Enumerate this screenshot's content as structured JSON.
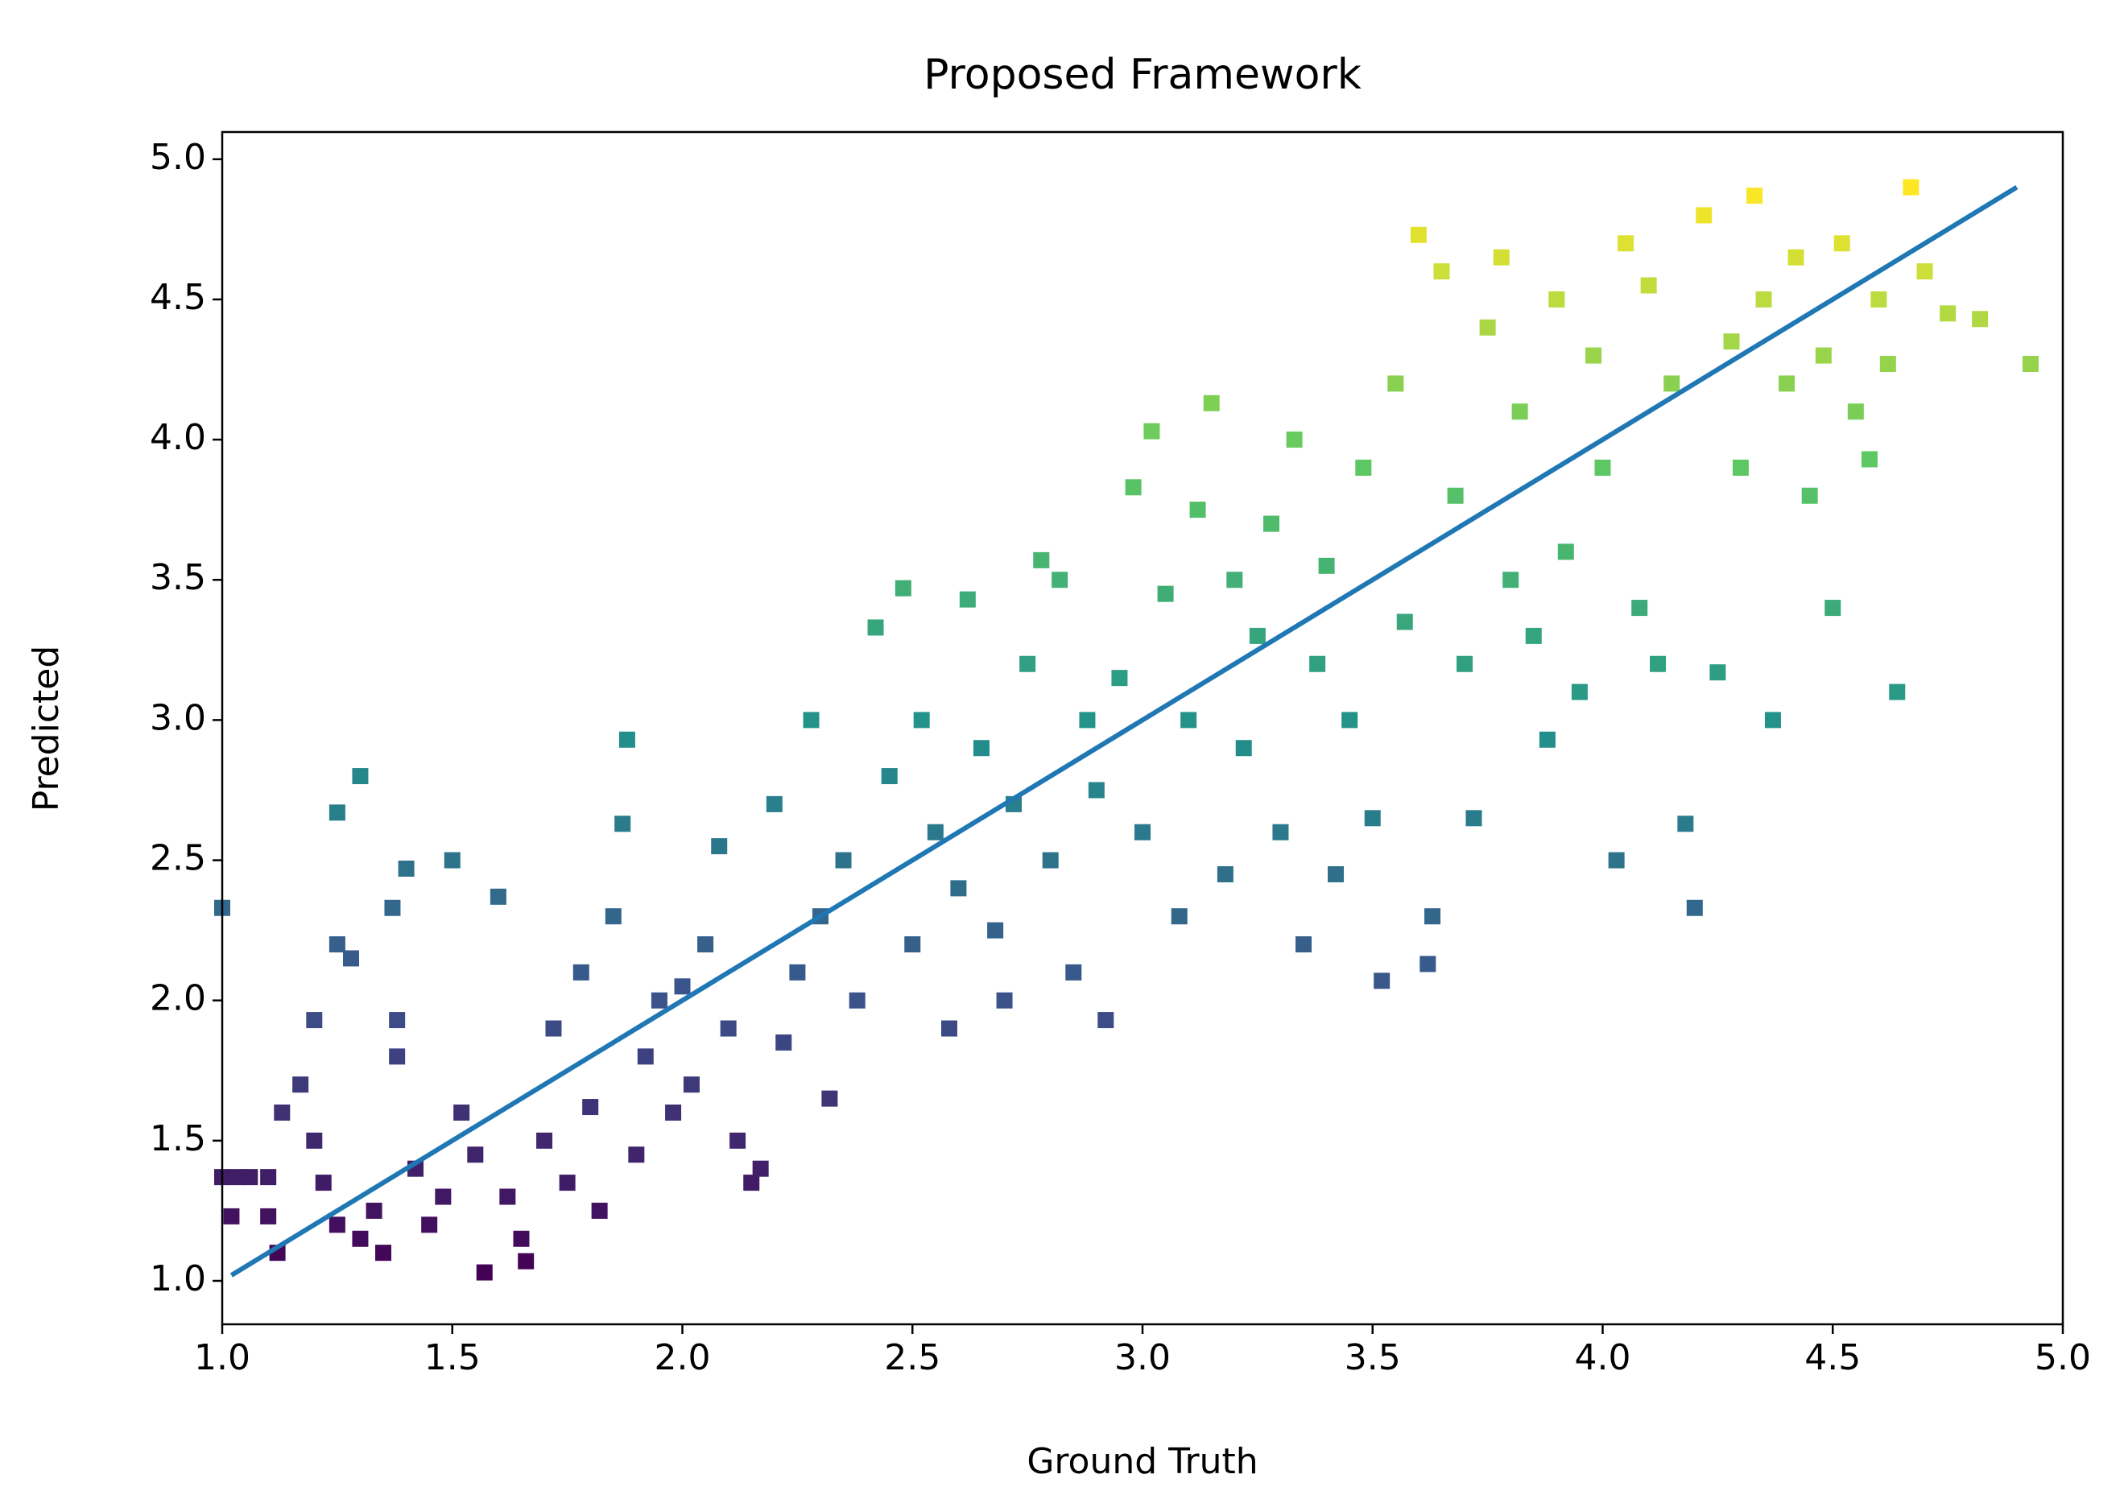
{
  "chart_data": {
    "type": "scatter",
    "title": "Proposed Framework",
    "x_label": "Ground Truth",
    "y_label": "Predicted",
    "xlim": [
      1.0,
      5.0
    ],
    "ylim": [
      0.845,
      5.097
    ],
    "xticks": [
      {
        "value": 1,
        "label": "1.0"
      },
      {
        "value": 1.5,
        "label": "1.5"
      },
      {
        "value": 2,
        "label": "2.0"
      },
      {
        "value": 2.5,
        "label": "2.5"
      },
      {
        "value": 3,
        "label": "3.0"
      },
      {
        "value": 3.5,
        "label": "3.5"
      },
      {
        "value": 4,
        "label": "4.0"
      },
      {
        "value": 4.5,
        "label": "4.5"
      },
      {
        "value": 5,
        "label": "5.0"
      }
    ],
    "yticks": [
      {
        "value": 1,
        "label": "1.0"
      },
      {
        "value": 1.5,
        "label": "1.5"
      },
      {
        "value": 2,
        "label": "2.0"
      },
      {
        "value": 2.5,
        "label": "2.5"
      },
      {
        "value": 3,
        "label": "3.0"
      },
      {
        "value": 3.5,
        "label": "3.5"
      },
      {
        "value": 4,
        "label": "4.0"
      },
      {
        "value": 4.5,
        "label": "4.5"
      },
      {
        "value": 5,
        "label": "5.0"
      }
    ],
    "colormap": [
      "#440154",
      "#3b528b",
      "#21918c",
      "#5ec962",
      "#fde725"
    ],
    "x": [
      1.0,
      1.03,
      1.06,
      1.1,
      1.02,
      1.1,
      1.12,
      1.13,
      1.17,
      1.2,
      1.25,
      1.3,
      1.25,
      1.28,
      1.2,
      1.22,
      1.25,
      1.3,
      1.33,
      1.35,
      1.38,
      1.4,
      1.37,
      1.38,
      1.42,
      1.45,
      1.48,
      1.5,
      1.52,
      1.55,
      1.57,
      1.6,
      1.62,
      1.65,
      1.66,
      1.7,
      1.72,
      1.75,
      1.78,
      1.8,
      1.82,
      1.85,
      1.87,
      1.88,
      1.9,
      1.92,
      1.95,
      1.98,
      2.0,
      2.02,
      2.05,
      2.08,
      2.1,
      2.12,
      2.15,
      2.17,
      2.2,
      2.22,
      2.25,
      2.28,
      2.3,
      2.32,
      2.35,
      2.38,
      2.42,
      2.45,
      2.48,
      2.5,
      2.52,
      2.55,
      2.58,
      2.6,
      2.62,
      2.65,
      2.68,
      2.7,
      2.72,
      2.75,
      2.78,
      2.8,
      2.82,
      2.85,
      2.88,
      2.9,
      2.92,
      2.95,
      2.98,
      3.0,
      3.02,
      3.05,
      3.08,
      3.1,
      3.12,
      3.15,
      3.18,
      3.2,
      3.22,
      3.25,
      3.28,
      3.3,
      3.33,
      3.35,
      3.38,
      3.4,
      3.42,
      3.45,
      3.48,
      3.5,
      3.52,
      3.55,
      3.57,
      3.6,
      3.62,
      3.63,
      3.65,
      3.68,
      3.7,
      3.72,
      3.75,
      3.78,
      3.8,
      3.82,
      3.85,
      3.88,
      3.9,
      3.92,
      3.95,
      3.98,
      4.0,
      4.03,
      4.05,
      4.08,
      4.1,
      4.12,
      4.15,
      4.18,
      4.2,
      4.22,
      4.25,
      4.28,
      4.3,
      4.33,
      4.35,
      4.37,
      4.4,
      4.42,
      4.45,
      4.48,
      4.5,
      4.52,
      4.55,
      4.58,
      4.6,
      4.62,
      4.64,
      4.67,
      4.7,
      4.75,
      4.82,
      4.93,
      1.0
    ],
    "y": [
      1.37,
      1.37,
      1.37,
      1.37,
      1.23,
      1.23,
      1.1,
      1.6,
      1.7,
      1.93,
      2.67,
      2.8,
      2.2,
      2.15,
      1.5,
      1.35,
      1.2,
      1.15,
      1.25,
      1.1,
      1.8,
      2.47,
      2.33,
      1.93,
      1.4,
      1.2,
      1.3,
      2.5,
      1.6,
      1.45,
      1.03,
      2.37,
      1.3,
      1.15,
      1.07,
      1.5,
      1.9,
      1.35,
      2.1,
      1.62,
      1.25,
      2.3,
      2.63,
      2.93,
      1.45,
      1.8,
      2.0,
      1.6,
      2.05,
      1.7,
      2.2,
      2.55,
      1.9,
      1.5,
      1.35,
      1.4,
      2.7,
      1.85,
      2.1,
      3.0,
      2.3,
      1.65,
      2.5,
      2.0,
      3.33,
      2.8,
      3.47,
      2.2,
      3.0,
      2.6,
      1.9,
      2.4,
      3.43,
      2.9,
      2.25,
      2.0,
      2.7,
      3.2,
      3.57,
      2.5,
      3.5,
      2.1,
      3.0,
      2.75,
      1.93,
      3.15,
      3.83,
      2.6,
      4.03,
      3.45,
      2.3,
      3.0,
      3.75,
      4.13,
      2.45,
      3.5,
      2.9,
      3.3,
      3.7,
      2.6,
      4.0,
      2.2,
      3.2,
      3.55,
      2.45,
      3.0,
      3.9,
      2.65,
      2.07,
      4.2,
      3.35,
      4.73,
      2.13,
      2.3,
      4.6,
      3.8,
      3.2,
      2.65,
      4.4,
      4.65,
      3.5,
      4.1,
      3.3,
      2.93,
      4.5,
      3.6,
      3.1,
      4.3,
      3.9,
      2.5,
      4.7,
      3.4,
      4.55,
      3.2,
      4.2,
      2.63,
      2.33,
      4.8,
      3.17,
      4.35,
      3.9,
      4.87,
      4.5,
      3.0,
      4.2,
      4.65,
      3.8,
      4.3,
      3.4,
      4.7,
      4.1,
      3.93,
      4.5,
      4.27,
      3.1,
      4.9,
      4.6,
      4.45,
      4.43,
      4.27,
      2.33
    ],
    "fit_line": {
      "color": "#1f77b4",
      "x": [
        1.02,
        4.9
      ],
      "y": [
        1.02,
        4.9
      ]
    }
  }
}
